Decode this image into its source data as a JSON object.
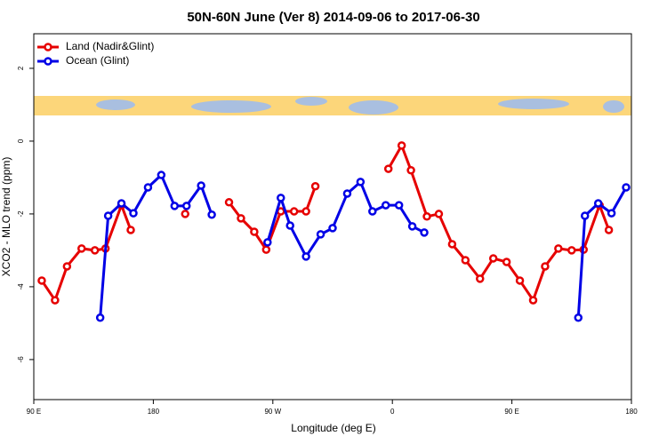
{
  "chart_data": {
    "type": "line",
    "title": "50N-60N June (Ver 8)   2014-09-06 to 2017-06-30",
    "x_label": "Longitude (deg E)",
    "y_label": "XCO2 - MLO trend (ppm)",
    "xlim": [
      90,
      540
    ],
    "ylim": [
      -7.1,
      2.95
    ],
    "xticks": [
      {
        "value": 90,
        "label": "90 E"
      },
      180,
      {
        "value": 270,
        "label": "90 W"
      },
      {
        "value": 360,
        "label": "0"
      },
      {
        "value": 450,
        "label": "90 E"
      },
      {
        "value": 540,
        "label": "180"
      }
    ],
    "yticks": [
      -6,
      -4,
      -2,
      0,
      2
    ],
    "legend": "top-left",
    "series": [
      {
        "name": "Land (Nadir&Glint)",
        "color": "#e60000",
        "x": [
          96,
          106,
          115,
          126,
          136,
          144,
          156,
          163,
          184,
          204,
          220,
          237,
          246,
          256,
          265,
          276,
          286,
          295,
          302,
          330,
          357,
          367,
          374,
          386,
          395,
          405,
          415,
          426,
          436,
          446,
          456,
          466,
          475,
          485,
          495,
          504,
          516,
          523
        ],
        "values": [
          -3.83,
          -4.37,
          -3.44,
          -2.95,
          -3.0,
          -2.95,
          -1.76,
          -2.44,
          null,
          -2.0,
          null,
          -1.68,
          -2.12,
          -2.49,
          -2.98,
          -1.93,
          -1.93,
          -1.93,
          -1.24,
          null,
          -0.76,
          -0.12,
          -0.8,
          -2.07,
          -2.0,
          -2.83,
          -3.27,
          -3.78,
          -3.22,
          -3.32,
          -3.83,
          -4.37,
          -3.44,
          -2.95,
          -3.0,
          -2.98,
          -1.76,
          -2.44
        ]
      },
      {
        "name": "Ocean (Glint)",
        "color": "#0000e6",
        "x": [
          140,
          146,
          156,
          165,
          176,
          186,
          196,
          205,
          216,
          224,
          245,
          266,
          276,
          283,
          295,
          306,
          315,
          326,
          336,
          345,
          355,
          365,
          375,
          384,
          440,
          500,
          505,
          515,
          525,
          536
        ],
        "values": [
          -4.85,
          -2.05,
          -1.71,
          -1.98,
          -1.27,
          -0.93,
          -1.78,
          -1.78,
          -1.22,
          -2.02,
          null,
          -2.78,
          -1.56,
          -2.32,
          -3.17,
          -2.56,
          -2.39,
          -1.44,
          -1.12,
          -1.93,
          -1.76,
          -1.76,
          -2.34,
          -2.51,
          null,
          -4.85,
          -2.05,
          -1.71,
          -1.98,
          -1.27
        ]
      }
    ]
  }
}
